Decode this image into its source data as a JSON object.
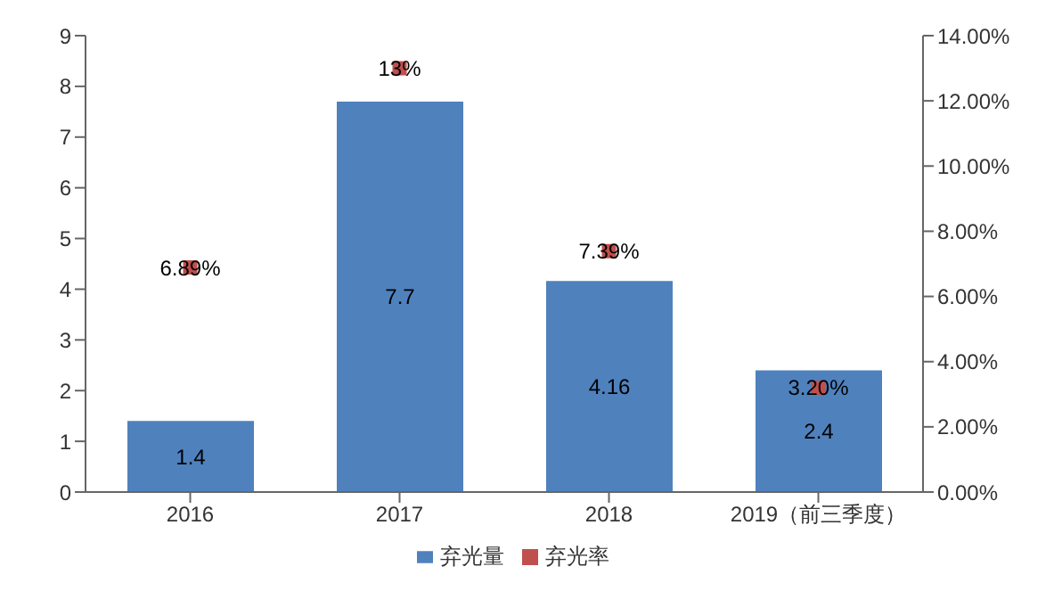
{
  "chart_data": {
    "type": "bar",
    "categories": [
      "2016",
      "2017",
      "2018",
      "2019（前三季度）"
    ],
    "series": [
      {
        "name": "弃光量",
        "color": "#4f81bd",
        "values": [
          1.4,
          7.7,
          4.16,
          2.4
        ],
        "value_labels": [
          "1.4",
          "7.7",
          "4.16",
          "2.4"
        ]
      },
      {
        "name": "弃光率",
        "type": "scatter",
        "axis": "y2",
        "color": "#c0504d",
        "values": [
          6.89,
          13,
          7.39,
          3.2
        ],
        "value_labels": [
          "6.89%",
          "13%",
          "7.39%",
          "3.20%"
        ]
      }
    ],
    "ylim": [
      0,
      9
    ],
    "yticks": [
      0,
      1,
      2,
      3,
      4,
      5,
      6,
      7,
      8,
      9
    ],
    "y2lim": [
      0,
      14
    ],
    "y2ticks": [
      {
        "value": 0,
        "label": "0.00%"
      },
      {
        "value": 2,
        "label": "2.00%"
      },
      {
        "value": 4,
        "label": "4.00%"
      },
      {
        "value": 6,
        "label": "6.00%"
      },
      {
        "value": 8,
        "label": "8.00%"
      },
      {
        "value": 10,
        "label": "10.00%"
      },
      {
        "value": 12,
        "label": "12.00%"
      },
      {
        "value": 14,
        "label": "14.00%"
      }
    ],
    "legend": "bottom",
    "marker": "square",
    "grid": false
  }
}
